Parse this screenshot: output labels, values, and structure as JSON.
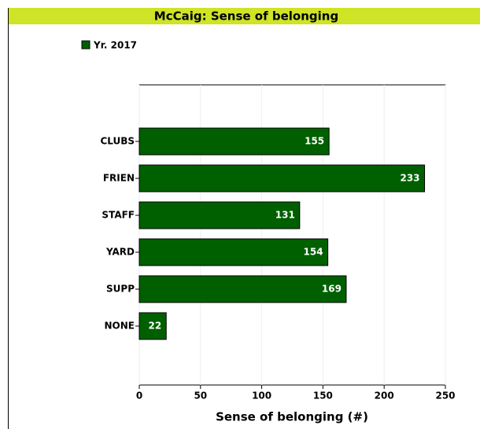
{
  "chart_data": {
    "type": "bar",
    "orientation": "horizontal",
    "title": "McCaig: Sense of belonging",
    "xlabel": "Sense of belonging  (#)",
    "categories": [
      "CLUBS",
      "FRIEN",
      "STAFF",
      "YARD",
      "SUPP",
      "NONE"
    ],
    "series": [
      {
        "name": "Yr. 2017",
        "color": "#006000",
        "values": [
          155,
          233,
          131,
          154,
          169,
          22
        ]
      }
    ],
    "xlim": [
      0,
      250
    ],
    "xticks": [
      0,
      50,
      100,
      150,
      200,
      250
    ],
    "grid": true
  }
}
